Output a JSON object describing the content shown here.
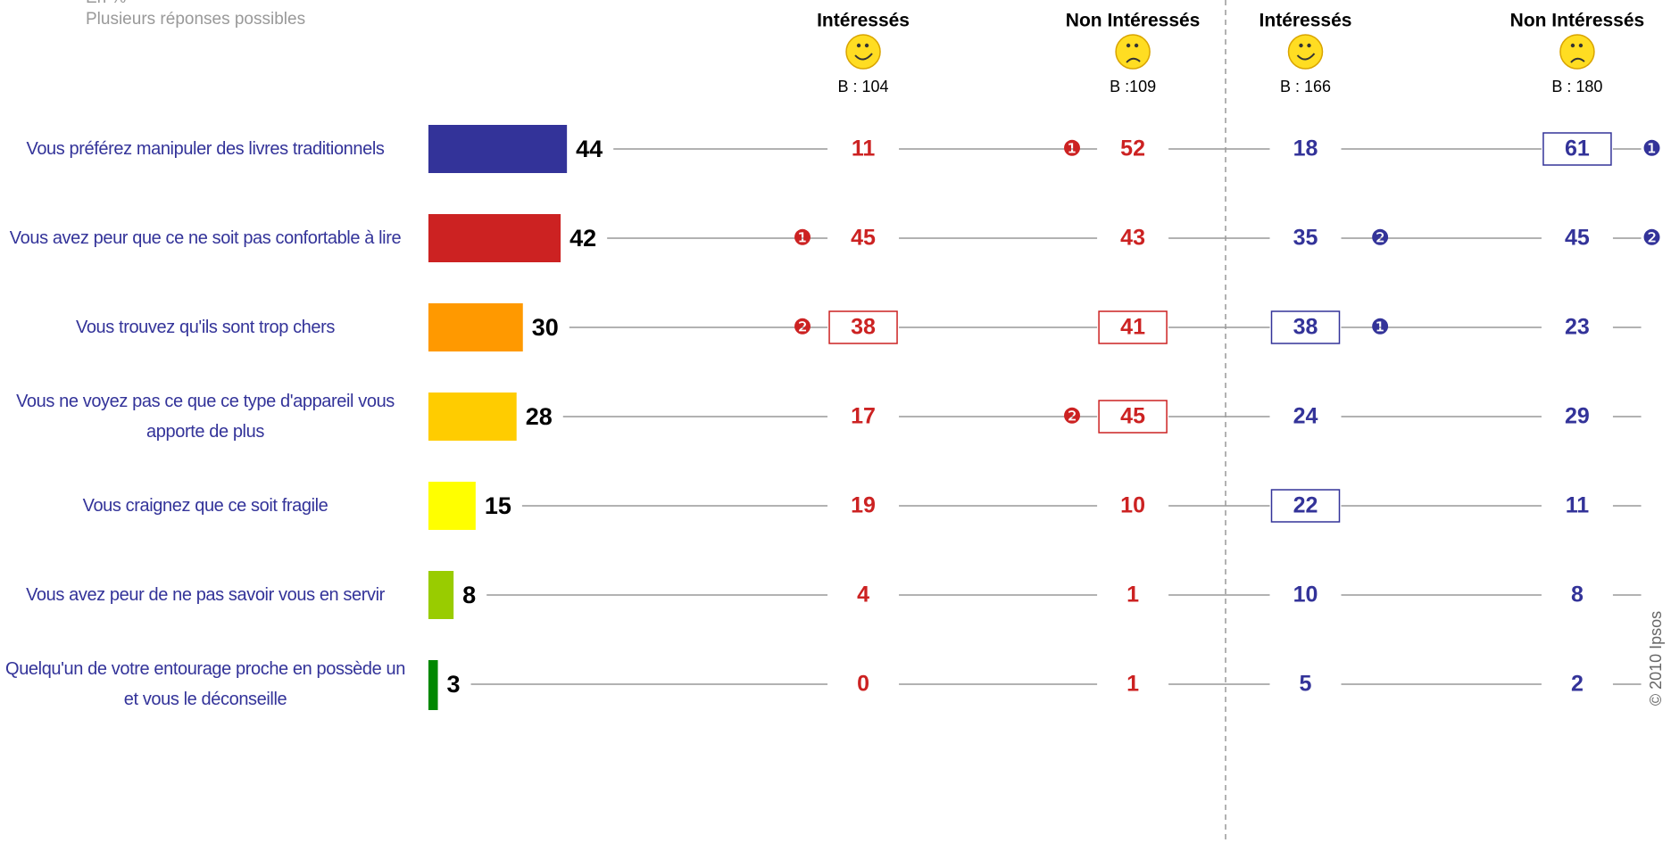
{
  "chart_data": {
    "type": "bar",
    "title": "En %",
    "subtitle": "Plusieurs réponses possibles",
    "categories": [
      "Vous préférez manipuler des livres traditionnels",
      "Vous avez peur que ce ne soit pas confortable à lire",
      "Vous trouvez qu'ils sont trop chers",
      "Vous ne voyez pas ce que ce type d'appareil vous apporte de plus",
      "Vous craignez que ce soit fragile",
      "Vous avez peur de ne pas savoir vous en servir",
      "Quelqu'un de votre entourage proche en possède un et vous le déconseille"
    ],
    "values": [
      44,
      42,
      30,
      28,
      15,
      8,
      3
    ],
    "colors": [
      "#333399",
      "#cc2222",
      "#ff9900",
      "#ffcc00",
      "#ffff00",
      "#99cc00",
      "#008800"
    ],
    "xlim": [
      0,
      100
    ],
    "columns": [
      {
        "name": "Intéressés",
        "base": "B : 104",
        "color": "#cc2222",
        "values": [
          11,
          45,
          38,
          17,
          19,
          4,
          0
        ],
        "boxed": [
          false,
          false,
          true,
          false,
          false,
          false,
          false
        ],
        "ranks": [
          null,
          "❶",
          "❷",
          null,
          null,
          null,
          null
        ]
      },
      {
        "name": "Non Intéressés",
        "base": "B :109",
        "color": "#cc2222",
        "values": [
          52,
          43,
          41,
          45,
          10,
          1,
          1
        ],
        "boxed": [
          false,
          false,
          true,
          true,
          false,
          false,
          false
        ],
        "ranks": [
          "❶",
          null,
          null,
          "❷",
          null,
          null,
          null
        ]
      },
      {
        "name": "Intéressés",
        "base": "B : 166",
        "color": "#333399",
        "values": [
          18,
          35,
          38,
          24,
          22,
          10,
          5
        ],
        "boxed": [
          false,
          false,
          true,
          false,
          true,
          false,
          false
        ],
        "ranks": [
          null,
          "❷",
          "❶",
          null,
          null,
          null,
          null
        ]
      },
      {
        "name": "Non Intéressés",
        "base": "B : 180",
        "color": "#333399",
        "values": [
          61,
          45,
          23,
          29,
          11,
          8,
          2
        ],
        "boxed": [
          true,
          false,
          false,
          false,
          false,
          false,
          false
        ],
        "ranks": [
          "❶",
          "❷",
          null,
          null,
          null,
          null,
          null
        ]
      }
    ],
    "copyright": "© 2010 Ipsos"
  }
}
